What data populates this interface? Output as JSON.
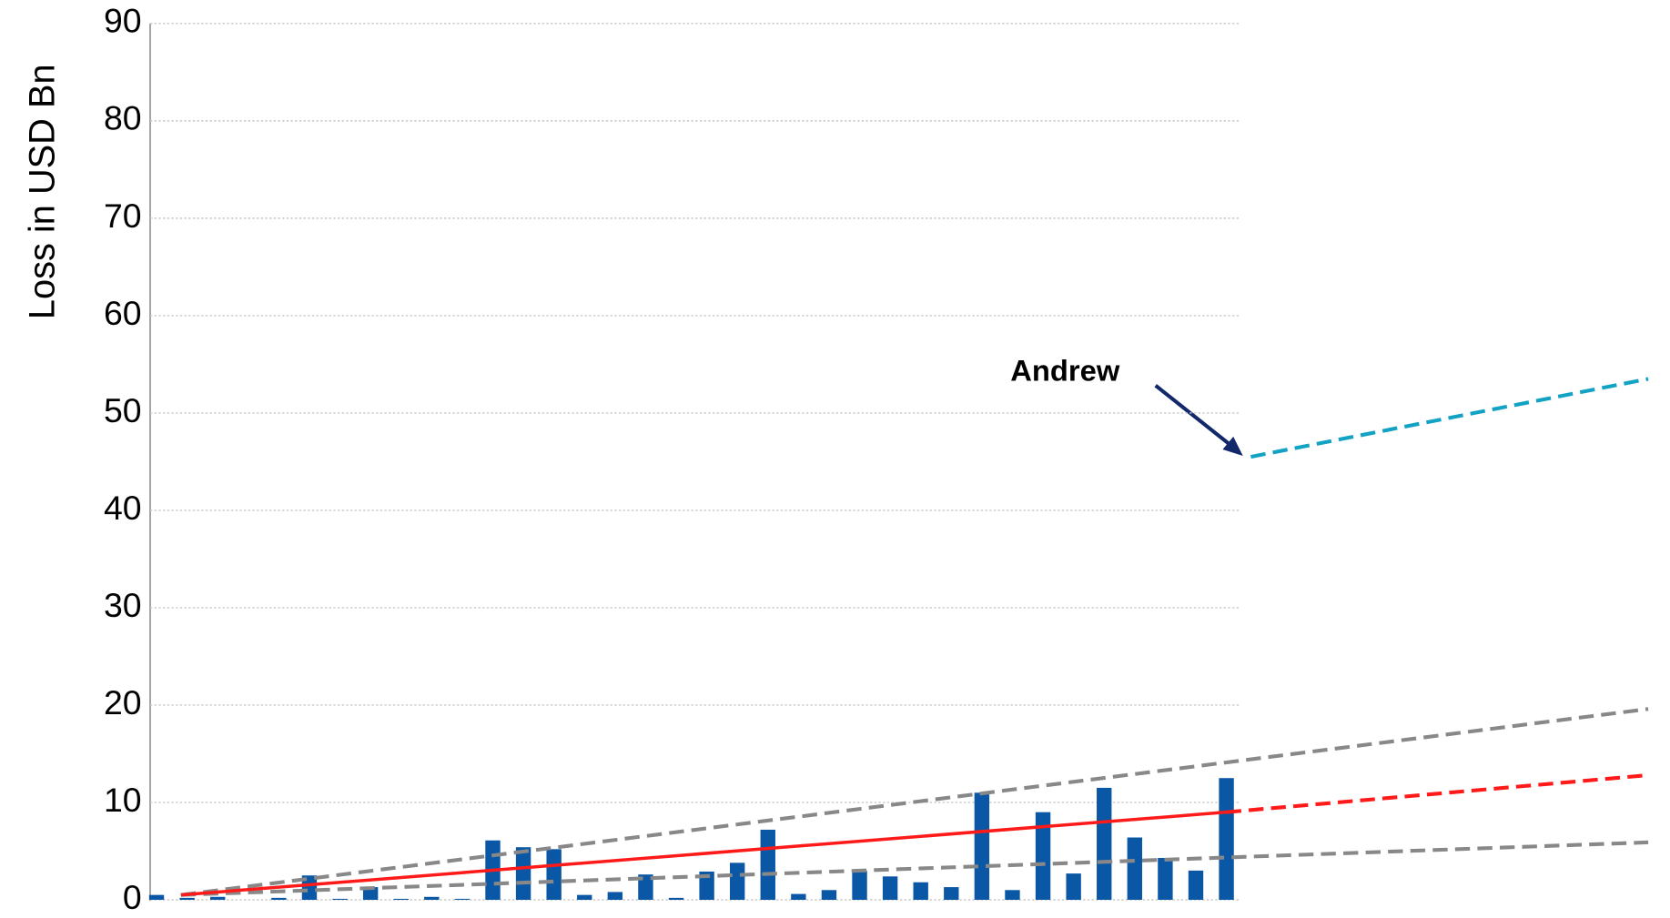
{
  "chart_data": {
    "type": "bar",
    "y_label": "Loss in USD Bn",
    "categories": [
      null,
      null,
      null,
      null,
      null,
      null,
      null,
      null,
      null,
      null,
      null,
      null,
      null,
      null,
      null,
      null,
      null,
      null,
      null,
      null,
      null,
      null,
      null,
      null,
      null,
      null,
      null,
      null,
      null,
      null,
      null,
      null,
      null,
      null,
      null,
      null
    ],
    "values": [
      0.5,
      0.2,
      0.3,
      0,
      0.2,
      2.5,
      0.1,
      1.3,
      0.1,
      0.3,
      0.1,
      6.1,
      5.4,
      5.2,
      0.5,
      0.8,
      2.6,
      0.2,
      2.9,
      3.8,
      7.2,
      0.6,
      1.0,
      3.0,
      2.4,
      1.8,
      1.3,
      11.0,
      1.0,
      9.0,
      2.7,
      11.5,
      6.4,
      4.3,
      3.0,
      12.5
    ],
    "color": "#0a57a5",
    "ylim": [
      0,
      90
    ],
    "yticks": [
      0,
      10,
      20,
      30,
      40,
      50,
      60,
      70,
      80,
      90
    ],
    "grid": true,
    "lines": [
      {
        "color": "#888888",
        "style": "dashed",
        "x": [
          0.8,
          48.8
        ],
        "values": [
          0.5,
          19.6
        ]
      },
      {
        "color": "#888888",
        "style": "dashed",
        "x": [
          0.8,
          48.8
        ],
        "values": [
          0.5,
          5.9
        ]
      },
      {
        "color": "#ff1a1a",
        "style": "solid",
        "x": [
          0.8,
          35
        ],
        "values": [
          0.5,
          9.0
        ]
      },
      {
        "color": "#ff1a1a",
        "style": "dashed",
        "x": [
          35,
          48.8
        ],
        "values": [
          9.0,
          12.8
        ]
      },
      {
        "color": "#12a3c4",
        "style": "dashed",
        "x": [
          35.8,
          48.8
        ],
        "values": [
          45.5,
          53.5
        ]
      }
    ],
    "annotations": [
      {
        "text": "Andrew"
      }
    ]
  }
}
